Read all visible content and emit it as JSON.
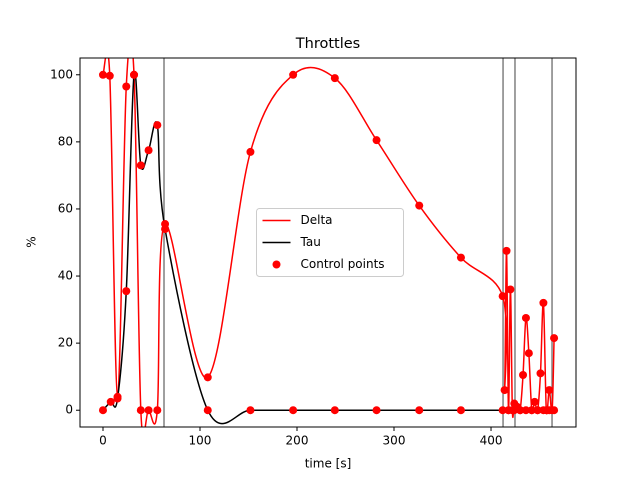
{
  "chart_data": {
    "type": "line",
    "title": "Throttles",
    "xlabel": "time [s]",
    "ylabel": "%",
    "xlim": [
      -23.7,
      487.6
    ],
    "ylim": [
      -5,
      105
    ],
    "xticks": [
      0,
      100,
      200,
      300,
      400
    ],
    "yticks": [
      0,
      20,
      40,
      60,
      80,
      100
    ],
    "legend": "center",
    "series": [
      {
        "name": "Delta",
        "color": "#ff0000",
        "x": [
          0,
          7,
          15,
          24,
          32,
          39,
          47,
          56,
          64,
          108,
          152,
          196,
          239,
          282,
          326,
          369,
          412,
          414,
          416,
          418,
          420,
          422,
          424,
          427,
          430,
          433,
          436,
          439,
          442,
          445,
          448,
          451,
          454,
          457,
          460,
          463,
          465
        ],
        "values": [
          100,
          99.7,
          4,
          96.5,
          100,
          0,
          0,
          0,
          55.5,
          9.8,
          77,
          100,
          99,
          80.5,
          61,
          45.5,
          34,
          6,
          47.5,
          0,
          36,
          0,
          2,
          1,
          0,
          10.5,
          27.5,
          17,
          0,
          2.5,
          0,
          11,
          32,
          0,
          6,
          0,
          21.5
        ]
      },
      {
        "name": "Tau",
        "color": "#000000",
        "x": [
          0,
          8,
          15,
          24,
          32,
          39,
          47,
          56,
          64,
          108,
          152,
          196,
          239,
          282,
          326,
          369,
          412,
          418,
          424,
          430,
          436,
          442,
          448,
          454,
          460,
          465
        ],
        "values": [
          0,
          2.5,
          3.5,
          35.5,
          100,
          73,
          77.5,
          85,
          54,
          0,
          0,
          0,
          0,
          0,
          0,
          0,
          0,
          0,
          0,
          0,
          0,
          0,
          0,
          0,
          0,
          0
        ]
      }
    ],
    "markers": {
      "name": "Control points",
      "color": "#ff0000"
    },
    "vlines": [
      62.9,
      412.4,
      424.7,
      462.9
    ],
    "vline_color": "#808080"
  }
}
